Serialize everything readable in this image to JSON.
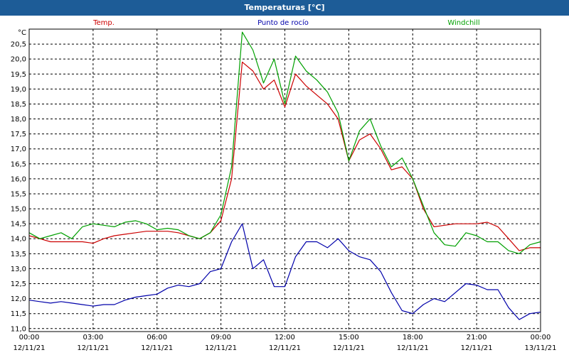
{
  "window": {
    "title": "Temperaturas [°C]"
  },
  "chart_data": {
    "type": "line",
    "unit_label": "°C",
    "ylim": [
      10.9,
      21.0
    ],
    "xlim": [
      0,
      24
    ],
    "grid": true,
    "yticks": [
      "11,0",
      "11,5",
      "12,0",
      "12,5",
      "13,0",
      "13,5",
      "14,0",
      "14,5",
      "15,0",
      "15,5",
      "16,0",
      "16,5",
      "17,0",
      "17,5",
      "18,0",
      "18,5",
      "19,0",
      "19,5",
      "20,0",
      "20,5"
    ],
    "ytick_values": [
      11,
      11.5,
      12,
      12.5,
      13,
      13.5,
      14,
      14.5,
      15,
      15.5,
      16,
      16.5,
      17,
      17.5,
      18,
      18.5,
      19,
      19.5,
      20,
      20.5
    ],
    "xticks": [
      {
        "x": 0,
        "time": "00:00",
        "date": "12/11/21"
      },
      {
        "x": 3,
        "time": "03:00",
        "date": "12/11/21"
      },
      {
        "x": 6,
        "time": "06:00",
        "date": "12/11/21"
      },
      {
        "x": 9,
        "time": "09:00",
        "date": "12/11/21"
      },
      {
        "x": 12,
        "time": "12:00",
        "date": "12/11/21"
      },
      {
        "x": 15,
        "time": "15:00",
        "date": "12/11/21"
      },
      {
        "x": 18,
        "time": "18:00",
        "date": "12/11/21"
      },
      {
        "x": 21,
        "time": "21:00",
        "date": "12/11/21"
      },
      {
        "x": 24,
        "time": "00:00",
        "date": "13/11/21"
      }
    ],
    "series": [
      {
        "name": "Temp.",
        "color": "#cc0000",
        "points": [
          [
            0,
            14.1
          ],
          [
            0.5,
            14.0
          ],
          [
            1,
            13.9
          ],
          [
            1.5,
            13.9
          ],
          [
            2,
            13.9
          ],
          [
            2.5,
            13.9
          ],
          [
            3,
            13.85
          ],
          [
            3.5,
            14.0
          ],
          [
            4,
            14.1
          ],
          [
            4.5,
            14.15
          ],
          [
            5,
            14.2
          ],
          [
            5.5,
            14.25
          ],
          [
            6,
            14.25
          ],
          [
            6.5,
            14.25
          ],
          [
            7,
            14.2
          ],
          [
            7.5,
            14.1
          ],
          [
            8,
            14.0
          ],
          [
            8.5,
            14.2
          ],
          [
            9,
            14.6
          ],
          [
            9.5,
            16.0
          ],
          [
            10,
            19.9
          ],
          [
            10.5,
            19.6
          ],
          [
            11,
            19.0
          ],
          [
            11.5,
            19.3
          ],
          [
            12,
            18.4
          ],
          [
            12.5,
            19.5
          ],
          [
            13,
            19.1
          ],
          [
            13.5,
            18.8
          ],
          [
            14,
            18.5
          ],
          [
            14.5,
            18.0
          ],
          [
            15,
            16.6
          ],
          [
            15.5,
            17.3
          ],
          [
            16,
            17.5
          ],
          [
            16.5,
            17.0
          ],
          [
            17,
            16.3
          ],
          [
            17.5,
            16.4
          ],
          [
            18,
            16.0
          ],
          [
            18.5,
            15.0
          ],
          [
            19,
            14.4
          ],
          [
            19.5,
            14.45
          ],
          [
            20,
            14.5
          ],
          [
            20.5,
            14.5
          ],
          [
            21,
            14.5
          ],
          [
            21.5,
            14.55
          ],
          [
            22,
            14.4
          ],
          [
            22.5,
            14.0
          ],
          [
            23,
            13.6
          ],
          [
            23.5,
            13.7
          ],
          [
            24,
            13.7
          ]
        ]
      },
      {
        "name": "Punto de rocío",
        "color": "#0000aa",
        "points": [
          [
            0,
            11.95
          ],
          [
            0.5,
            11.9
          ],
          [
            1,
            11.85
          ],
          [
            1.5,
            11.9
          ],
          [
            2,
            11.85
          ],
          [
            2.5,
            11.8
          ],
          [
            3,
            11.75
          ],
          [
            3.5,
            11.8
          ],
          [
            4,
            11.8
          ],
          [
            4.5,
            11.95
          ],
          [
            5,
            12.05
          ],
          [
            5.5,
            12.1
          ],
          [
            6,
            12.15
          ],
          [
            6.5,
            12.35
          ],
          [
            7,
            12.45
          ],
          [
            7.5,
            12.4
          ],
          [
            8,
            12.5
          ],
          [
            8.5,
            12.9
          ],
          [
            9,
            13.0
          ],
          [
            9.5,
            13.9
          ],
          [
            10,
            14.5
          ],
          [
            10.5,
            13.0
          ],
          [
            11,
            13.3
          ],
          [
            11.5,
            12.4
          ],
          [
            12,
            12.4
          ],
          [
            12.5,
            13.4
          ],
          [
            13,
            13.9
          ],
          [
            13.5,
            13.9
          ],
          [
            14,
            13.7
          ],
          [
            14.5,
            14.0
          ],
          [
            15,
            13.6
          ],
          [
            15.5,
            13.4
          ],
          [
            16,
            13.3
          ],
          [
            16.5,
            12.9
          ],
          [
            17,
            12.2
          ],
          [
            17.5,
            11.6
          ],
          [
            18,
            11.5
          ],
          [
            18.5,
            11.8
          ],
          [
            19,
            12.0
          ],
          [
            19.5,
            11.9
          ],
          [
            20,
            12.2
          ],
          [
            20.5,
            12.5
          ],
          [
            21,
            12.45
          ],
          [
            21.5,
            12.3
          ],
          [
            22,
            12.3
          ],
          [
            22.5,
            11.7
          ],
          [
            23,
            11.3
          ],
          [
            23.5,
            11.5
          ],
          [
            24,
            11.55
          ]
        ]
      },
      {
        "name": "Windchill",
        "color": "#00a000",
        "points": [
          [
            0,
            14.2
          ],
          [
            0.5,
            14.0
          ],
          [
            1,
            14.1
          ],
          [
            1.5,
            14.2
          ],
          [
            2,
            14.0
          ],
          [
            2.5,
            14.4
          ],
          [
            3,
            14.5
          ],
          [
            3.5,
            14.45
          ],
          [
            4,
            14.4
          ],
          [
            4.5,
            14.55
          ],
          [
            5,
            14.6
          ],
          [
            5.5,
            14.5
          ],
          [
            6,
            14.3
          ],
          [
            6.5,
            14.35
          ],
          [
            7,
            14.3
          ],
          [
            7.5,
            14.1
          ],
          [
            8,
            14.0
          ],
          [
            8.5,
            14.2
          ],
          [
            9,
            14.8
          ],
          [
            9.5,
            16.4
          ],
          [
            10,
            20.9
          ],
          [
            10.5,
            20.3
          ],
          [
            11,
            19.2
          ],
          [
            11.5,
            20.0
          ],
          [
            12,
            18.5
          ],
          [
            12.5,
            20.1
          ],
          [
            13,
            19.6
          ],
          [
            13.5,
            19.3
          ],
          [
            14,
            18.9
          ],
          [
            14.5,
            18.2
          ],
          [
            15,
            16.6
          ],
          [
            15.5,
            17.6
          ],
          [
            16,
            18.0
          ],
          [
            16.5,
            17.1
          ],
          [
            17,
            16.4
          ],
          [
            17.5,
            16.7
          ],
          [
            18,
            16.0
          ],
          [
            18.5,
            15.1
          ],
          [
            19,
            14.2
          ],
          [
            19.5,
            13.8
          ],
          [
            20,
            13.75
          ],
          [
            20.5,
            14.2
          ],
          [
            21,
            14.1
          ],
          [
            21.5,
            13.9
          ],
          [
            22,
            13.9
          ],
          [
            22.5,
            13.6
          ],
          [
            23,
            13.5
          ],
          [
            23.5,
            13.8
          ],
          [
            24,
            13.9
          ]
        ]
      }
    ]
  }
}
